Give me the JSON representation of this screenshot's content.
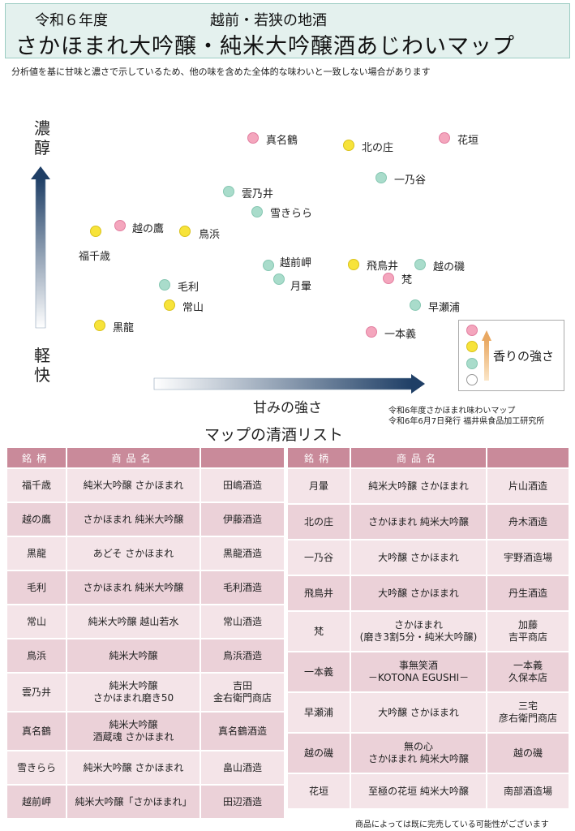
{
  "header": {
    "year": "令和６年度",
    "region": "越前・若狭の地酒",
    "title": "さかほまれ大吟醸・純米大吟醸酒あじわいマップ"
  },
  "note": "分析値を基に甘味と濃さで示しているため、他の味を含めた全体的な味わいと一致しない場合があります",
  "map": {
    "y_top_label": "濃醇",
    "y_bottom_label": "軽快",
    "x_label": "甘みの強さ",
    "legend_label": "香りの強さ",
    "colors": {
      "pink": "#f4a6bd",
      "yellow": "#f7e33a",
      "teal": "#a9dccb",
      "white": "#ffffff"
    },
    "points": [
      {
        "name": "真名鶴",
        "aroma": "pink"
      },
      {
        "name": "北の庄",
        "aroma": "yellow"
      },
      {
        "name": "花垣",
        "aroma": "pink"
      },
      {
        "name": "一乃谷",
        "aroma": "teal"
      },
      {
        "name": "雲乃井",
        "aroma": "teal"
      },
      {
        "name": "雪きらら",
        "aroma": "teal"
      },
      {
        "name": "越の鷹",
        "aroma": "pink"
      },
      {
        "name": "鳥浜",
        "aroma": "yellow"
      },
      {
        "name": "福千歳",
        "aroma": "yellow"
      },
      {
        "name": "越前岬",
        "aroma": "teal"
      },
      {
        "name": "飛鳥井",
        "aroma": "yellow"
      },
      {
        "name": "越の磯",
        "aroma": "teal"
      },
      {
        "name": "月暈",
        "aroma": "teal"
      },
      {
        "name": "梵",
        "aroma": "pink"
      },
      {
        "name": "毛利",
        "aroma": "teal"
      },
      {
        "name": "常山",
        "aroma": "yellow"
      },
      {
        "name": "早瀬浦",
        "aroma": "teal"
      },
      {
        "name": "黒龍",
        "aroma": "yellow"
      },
      {
        "name": "一本義",
        "aroma": "pink"
      }
    ]
  },
  "credit": {
    "line1": "令和6年度さかほまれ味わいマップ",
    "line2": "令和6年6月7日発行 福井県食品加工研究所"
  },
  "list_title": "マップの清酒リスト",
  "table_headers": {
    "brand": "銘柄",
    "product": "商品名",
    "maker": ""
  },
  "left_rows": [
    {
      "brand": "福千歳",
      "product": "純米大吟醸 さかほまれ",
      "maker": "田嶋酒造"
    },
    {
      "brand": "越の鷹",
      "product": "さかほまれ 純米大吟醸",
      "maker": "伊藤酒造"
    },
    {
      "brand": "黒龍",
      "product": "あどそ さかほまれ",
      "maker": "黒龍酒造"
    },
    {
      "brand": "毛利",
      "product": "さかほまれ 純米大吟醸",
      "maker": "毛利酒造"
    },
    {
      "brand": "常山",
      "product": "純米大吟醸 越山若水",
      "maker": "常山酒造"
    },
    {
      "brand": "鳥浜",
      "product": "純米大吟醸",
      "maker": "鳥浜酒造"
    },
    {
      "brand": "雲乃井",
      "product": "純米大吟醸\nさかほまれ磨き50",
      "maker": "吉田\n金右衛門商店"
    },
    {
      "brand": "真名鶴",
      "product": "純米大吟醸\n酒蔵魂 さかほまれ",
      "maker": "真名鶴酒造"
    },
    {
      "brand": "雪きらら",
      "product": "純米大吟醸 さかほまれ",
      "maker": "畠山酒造"
    },
    {
      "brand": "越前岬",
      "product": "純米大吟醸「さかほまれ」",
      "maker": "田辺酒造"
    }
  ],
  "right_rows": [
    {
      "brand": "月暈",
      "product": "純米大吟醸 さかほまれ",
      "maker": "片山酒造"
    },
    {
      "brand": "北の庄",
      "product": "さかほまれ 純米大吟醸",
      "maker": "舟木酒造"
    },
    {
      "brand": "一乃谷",
      "product": "大吟醸 さかほまれ",
      "maker": "宇野酒造場"
    },
    {
      "brand": "飛鳥井",
      "product": "大吟醸 さかほまれ",
      "maker": "丹生酒造"
    },
    {
      "brand": "梵",
      "product": "さかほまれ\n(磨き3割5分・純米大吟醸)",
      "maker": "加藤\n吉平商店"
    },
    {
      "brand": "一本義",
      "product": "事無笑酒\n－KOTONA EGUSHI－",
      "maker": "一本義\n久保本店"
    },
    {
      "brand": "早瀬浦",
      "product": "大吟醸 さかほまれ",
      "maker": "三宅\n彦右衛門商店"
    },
    {
      "brand": "越の磯",
      "product": "無の心\nさかほまれ 純米大吟醸",
      "maker": "越の磯"
    },
    {
      "brand": "花垣",
      "product": "至極の花垣 純米大吟醸",
      "maker": "南部酒造場"
    }
  ],
  "footnote": "商品によっては既に完売している可能性がございます"
}
